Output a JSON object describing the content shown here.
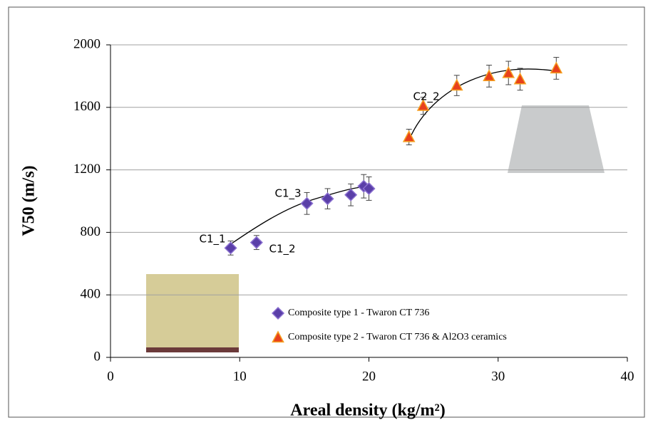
{
  "chart_data": {
    "type": "scatter",
    "x_label": "Areal density (kg/m²)",
    "y_label": "V50 (m/s)",
    "xlim": [
      0,
      40
    ],
    "xticks": [
      0,
      10,
      20,
      30,
      40
    ],
    "ylim": [
      0,
      2000
    ],
    "yticks": [
      0,
      400,
      800,
      1200,
      1600,
      2000
    ],
    "grid": true,
    "legend": "bottom",
    "annotations": [
      "C1_1",
      "C1_2",
      "C1_3",
      "C2_2"
    ],
    "series": [
      {
        "name": "Composite type 1 - Twaron CT 736",
        "color": "#5a3fa8",
        "marker": "diamond",
        "x": [
          9.3,
          11.3,
          15.2,
          16.8,
          18.6,
          19.6,
          20.0
        ],
        "values": [
          700,
          735,
          985,
          1015,
          1040,
          1095,
          1080
        ],
        "errors": [
          45,
          45,
          70,
          65,
          70,
          75,
          75
        ]
      },
      {
        "name": "Composite type 2 - Twaron CT 736 & Al2O3 ceramics",
        "color": "#e8401c",
        "marker": "triangle",
        "x": [
          23.1,
          24.2,
          26.8,
          29.3,
          30.8,
          31.7,
          34.5
        ],
        "values": [
          1410,
          1610,
          1740,
          1800,
          1820,
          1780,
          1850
        ],
        "errors": [
          50,
          55,
          65,
          70,
          75,
          70,
          70
        ]
      }
    ]
  }
}
